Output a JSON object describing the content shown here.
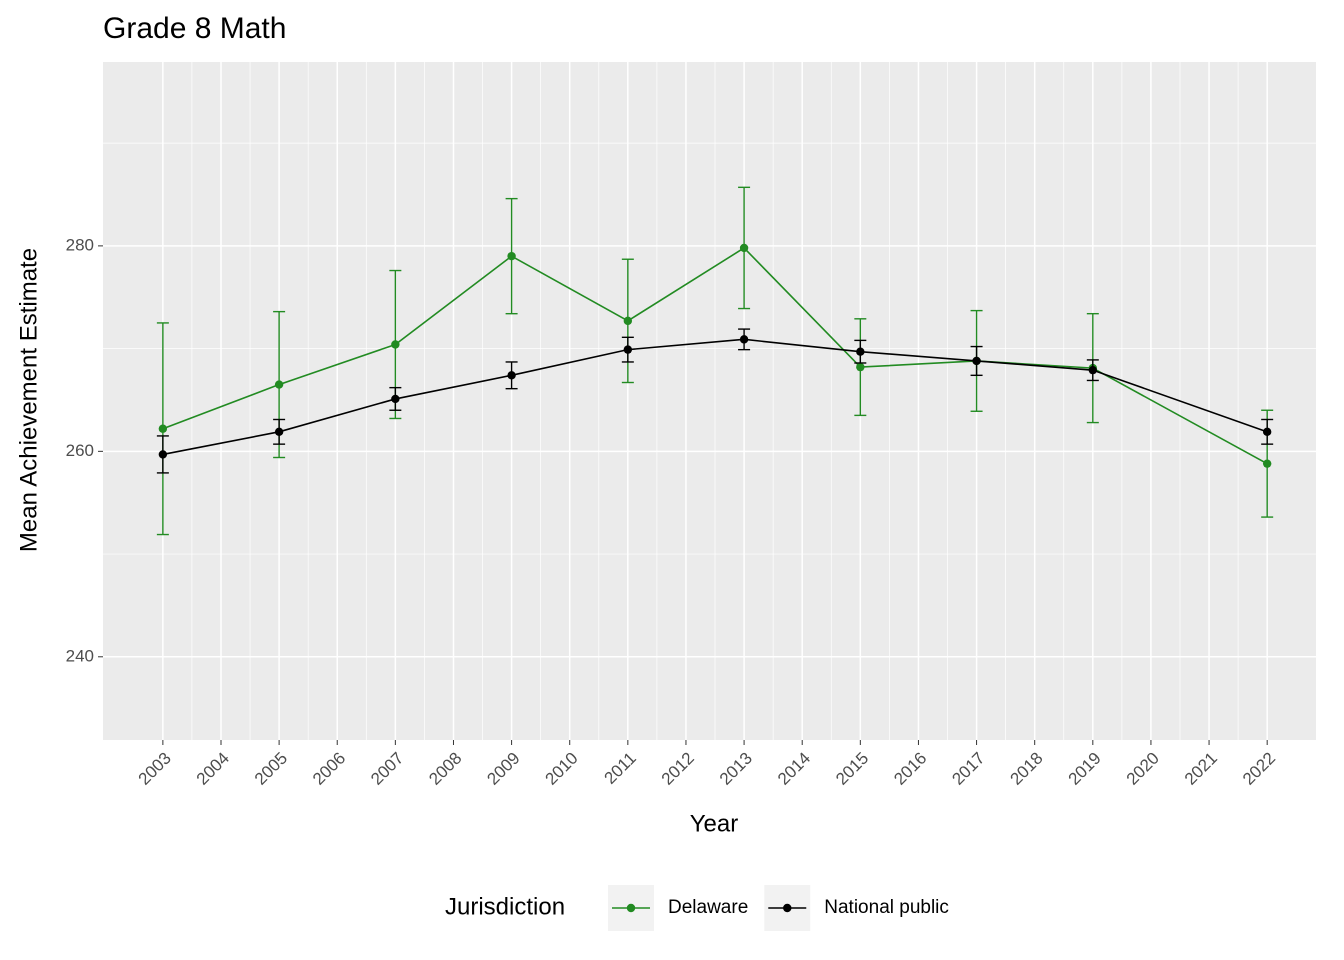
{
  "chart_data": {
    "type": "line",
    "title": "Grade 8 Math",
    "x_label": "Year",
    "y_label": "Mean Achievement Estimate",
    "legend_title": "Jurisdiction",
    "legend_position": "bottom",
    "x": [
      2003,
      2005,
      2007,
      2009,
      2011,
      2013,
      2015,
      2017,
      2019,
      2022
    ],
    "series": [
      {
        "name": "Delaware",
        "color": "#228b22",
        "values": [
          262.2,
          266.5,
          270.4,
          279.0,
          272.7,
          279.8,
          268.2,
          268.8,
          268.1,
          258.8
        ],
        "errors": [
          10.3,
          7.1,
          7.2,
          5.6,
          6.0,
          5.9,
          4.7,
          4.9,
          5.3,
          5.2
        ]
      },
      {
        "name": "National public",
        "color": "#000000",
        "values": [
          259.7,
          261.9,
          265.1,
          267.4,
          269.9,
          270.9,
          269.7,
          268.8,
          267.9,
          261.9
        ],
        "errors": [
          1.8,
          1.2,
          1.1,
          1.3,
          1.2,
          1.0,
          1.1,
          1.4,
          1.0,
          1.2
        ]
      }
    ],
    "xlim": [
      2001.97,
      2022.84
    ],
    "xticks": [
      2003,
      2004,
      2005,
      2006,
      2007,
      2008,
      2009,
      2010,
      2011,
      2012,
      2013,
      2014,
      2015,
      2016,
      2017,
      2018,
      2019,
      2020,
      2021,
      2022
    ],
    "ylim": [
      231.9,
      297.9
    ],
    "yticks": [
      240,
      260,
      280
    ],
    "grid": true
  }
}
